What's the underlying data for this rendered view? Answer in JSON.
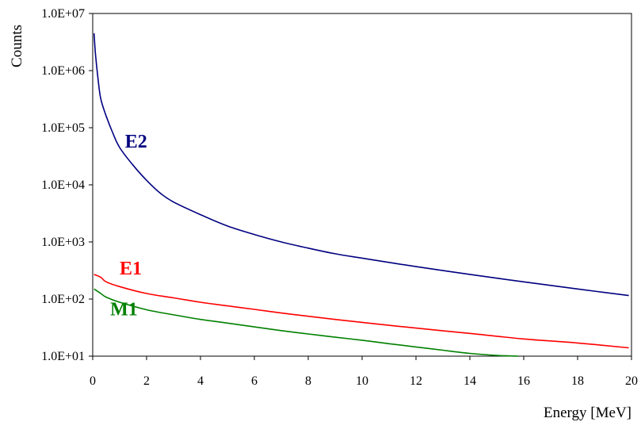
{
  "chart_data": {
    "type": "line",
    "title": "",
    "xlabel": "Energy [MeV]",
    "ylabel": "Counts",
    "xlim": [
      0,
      20
    ],
    "ylim": [
      10,
      10000000
    ],
    "y_scale": "log",
    "grid": false,
    "legend": "none",
    "x_ticks": [
      "0",
      "2",
      "4",
      "6",
      "8",
      "10",
      "12",
      "14",
      "16",
      "18",
      "20"
    ],
    "y_ticks": [
      "1.0E+01",
      "1.0E+02",
      "1.0E+03",
      "1.0E+04",
      "1.0E+05",
      "1.0E+06",
      "1.0E+07"
    ],
    "series": [
      {
        "name": "E2",
        "color": "#000080",
        "x": [
          0.05,
          0.1,
          0.2,
          0.3,
          0.5,
          0.75,
          1,
          1.5,
          2,
          2.5,
          3,
          4,
          5,
          6,
          7,
          8,
          9,
          10,
          12,
          14,
          16,
          18,
          19.9
        ],
        "y": [
          4500000,
          2000000,
          700000,
          320000,
          160000,
          80000,
          45000,
          22000,
          12000,
          7200,
          5000,
          3000,
          1900,
          1350,
          1000,
          780,
          620,
          520,
          370,
          270,
          200,
          150,
          115
        ]
      },
      {
        "name": "E1",
        "color": "#ff0000",
        "x": [
          0.05,
          0.3,
          0.5,
          1,
          2,
          3,
          4,
          5,
          6,
          7,
          8,
          9,
          10,
          12,
          14,
          16,
          18,
          19.9
        ],
        "y": [
          270,
          240,
          200,
          165,
          125,
          105,
          88,
          76,
          66,
          57,
          50,
          44,
          39,
          31,
          25,
          20,
          17,
          14
        ]
      },
      {
        "name": "M1",
        "color": "#008000",
        "x": [
          0.05,
          0.3,
          0.5,
          1,
          2,
          3,
          4,
          5,
          6,
          7,
          8,
          9,
          10,
          11,
          12,
          13,
          14,
          15,
          15.8
        ],
        "y": [
          150,
          125,
          108,
          88,
          65,
          53,
          44,
          38,
          32.5,
          28,
          24.5,
          21.5,
          19,
          16.5,
          14.5,
          12.7,
          11.2,
          10.3,
          10
        ]
      }
    ]
  }
}
